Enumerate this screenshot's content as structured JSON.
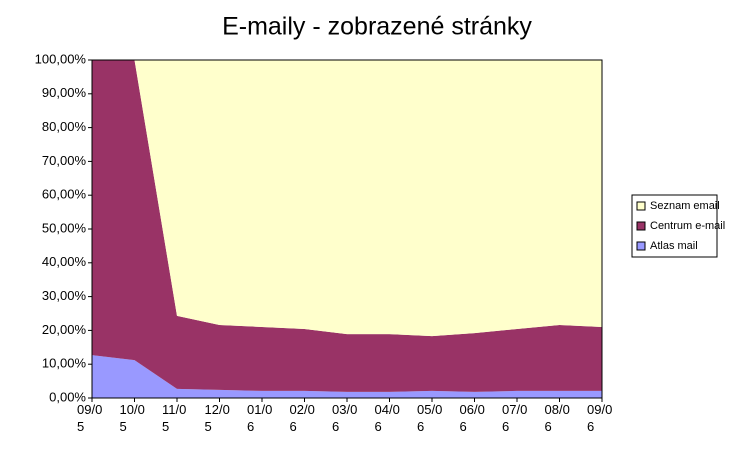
{
  "chart_data": {
    "type": "stacked-area",
    "title": "E-maily - zobrazené stránky",
    "categories": [
      "09/05",
      "10/05",
      "11/05",
      "12/05",
      "01/06",
      "02/06",
      "03/06",
      "04/06",
      "05/06",
      "06/06",
      "07/06",
      "08/06",
      "09/06"
    ],
    "series": [
      {
        "name": "Atlas mail",
        "color": "#9999ff",
        "values": [
          12.7,
          11.2,
          2.7,
          2.4,
          2.1,
          2.1,
          1.8,
          1.8,
          2.1,
          1.8,
          2.1,
          2.1,
          2.1
        ]
      },
      {
        "name": "Centrum e-mail",
        "color": "#993366",
        "values": [
          87.3,
          88.8,
          21.6,
          19.2,
          18.9,
          18.3,
          17.1,
          17.1,
          16.2,
          17.4,
          18.3,
          19.5,
          18.9
        ]
      },
      {
        "name": "Seznam email",
        "color": "#ffffcc",
        "values": [
          0,
          0,
          75.7,
          78.4,
          79.0,
          79.6,
          81.1,
          81.1,
          81.7,
          80.8,
          79.6,
          78.4,
          79.0
        ]
      }
    ],
    "ylim": [
      0,
      100
    ],
    "yticks": [
      {
        "value": 0,
        "label": "0,00%"
      },
      {
        "value": 10,
        "label": "10,00%"
      },
      {
        "value": 20,
        "label": "20,00%"
      },
      {
        "value": 30,
        "label": "30,00%"
      },
      {
        "value": 40,
        "label": "40,00%"
      },
      {
        "value": 50,
        "label": "50,00%"
      },
      {
        "value": 60,
        "label": "60,00%"
      },
      {
        "value": 70,
        "label": "70,00%"
      },
      {
        "value": 80,
        "label": "80,00%"
      },
      {
        "value": 90,
        "label": "90,00%"
      },
      {
        "value": 100,
        "label": "100,00%"
      }
    ],
    "legend": "right"
  }
}
